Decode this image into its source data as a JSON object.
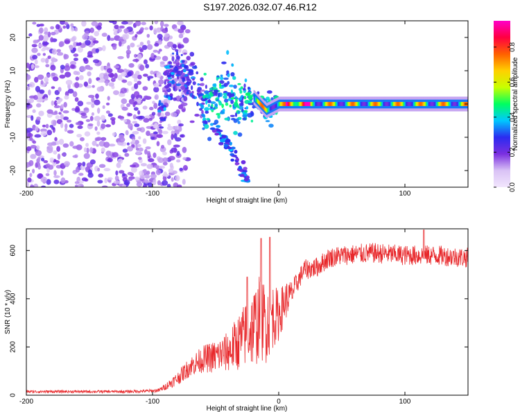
{
  "title": "S197.2026.032.07.46.R12",
  "colors": {
    "cmap": [
      "#ffffff",
      "#d9c2f5",
      "#7b2fe0",
      "#2b2bf0",
      "#00c8ff",
      "#00ff60",
      "#c8ff00",
      "#ffd000",
      "#ff6000",
      "#ff0040",
      "#ff00c8"
    ],
    "snr_line": "#e8282b"
  },
  "chart_data": [
    {
      "type": "heatmap",
      "title": "",
      "xlabel": "Height of straight line (km)",
      "ylabel": "Frequency (Hz)",
      "xlim": [
        -200,
        150
      ],
      "ylim": [
        -25,
        25
      ],
      "xticks": [
        -200,
        -100,
        0,
        100
      ],
      "yticks": [
        -20,
        -10,
        0,
        10,
        20
      ],
      "description_features": {
        "noise_region_km": [
          -200,
          -80
        ],
        "converging_track": [
          {
            "x": -90,
            "y": 6
          },
          {
            "x": -80,
            "y": 10
          },
          {
            "x": -70,
            "y": 6
          },
          {
            "x": -60,
            "y": 1
          },
          {
            "x": -50,
            "y": 2
          },
          {
            "x": -40,
            "y": 3
          },
          {
            "x": -30,
            "y": -1
          },
          {
            "x": -20,
            "y": 2
          },
          {
            "x": -10,
            "y": -2
          },
          {
            "x": 0,
            "y": 0
          },
          {
            "x": 150,
            "y": 0
          }
        ],
        "lower_branch": [
          {
            "x": -50,
            "y": -8
          },
          {
            "x": -40,
            "y": -12
          },
          {
            "x": -30,
            "y": -20
          },
          {
            "x": -25,
            "y": -23
          }
        ]
      },
      "colorbar": {
        "label": "Normalized spectral amplitude",
        "range": [
          0.0,
          0.95
        ],
        "ticks": [
          "0.0",
          "0.2",
          "0.4",
          "0.6",
          "0.8"
        ]
      }
    },
    {
      "type": "line",
      "title": "",
      "xlabel": "Height of straight line (km)",
      "ylabel": "SNR (10 * v/v)",
      "xlim": [
        -200,
        150
      ],
      "ylim": [
        0,
        690
      ],
      "xticks": [
        -200,
        -100,
        0,
        100
      ],
      "yticks": [
        0,
        200,
        400,
        600
      ],
      "series": [
        {
          "name": "SNR",
          "x": [
            -200,
            -150,
            -120,
            -100,
            -95,
            -90,
            -80,
            -70,
            -60,
            -50,
            -40,
            -30,
            -25,
            -20,
            -15,
            -10,
            -5,
            0,
            5,
            10,
            15,
            20,
            30,
            40,
            50,
            75,
            100,
            125,
            150
          ],
          "mean": [
            15,
            15,
            15,
            18,
            20,
            35,
            70,
            120,
            150,
            160,
            180,
            230,
            260,
            280,
            320,
            300,
            330,
            330,
            390,
            420,
            470,
            520,
            530,
            570,
            580,
            590,
            580,
            580,
            570
          ],
          "noise": [
            8,
            8,
            8,
            10,
            12,
            20,
            40,
            60,
            80,
            100,
            120,
            180,
            200,
            240,
            260,
            240,
            200,
            150,
            120,
            80,
            60,
            60,
            60,
            60,
            60,
            60,
            60,
            60,
            60
          ],
          "peaks": [
            {
              "x": -25,
              "y": 490
            },
            {
              "x": -14,
              "y": 650
            },
            {
              "x": -7,
              "y": 655
            },
            {
              "x": 115,
              "y": 685
            }
          ]
        }
      ]
    }
  ]
}
